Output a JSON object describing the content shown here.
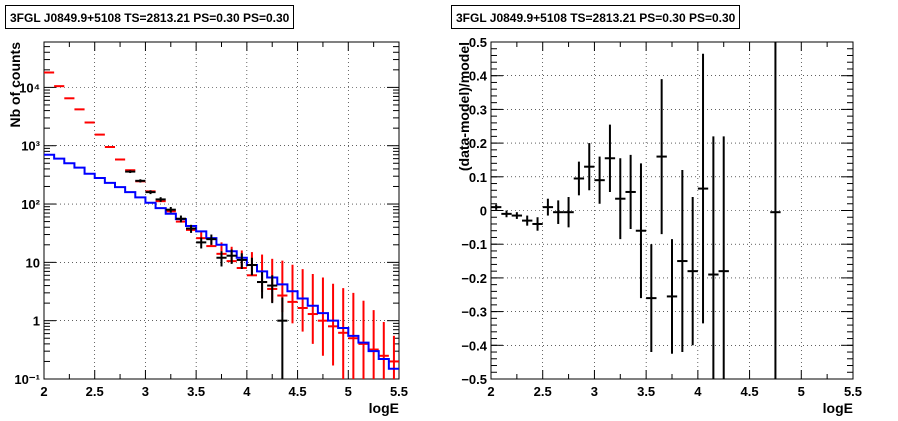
{
  "chart_data": [
    {
      "type": "line",
      "title": "3FGL J0849.9+5108 TS=2813.21 PS=0.30 PS=0.30",
      "xlabel": "logE",
      "ylabel": "Nb of counts",
      "xlim": [
        2,
        5.5
      ],
      "ylim": [
        0.1,
        60000
      ],
      "yscale": "log",
      "grid": true,
      "xticks": [
        2,
        2.5,
        3,
        3.5,
        4,
        4.5,
        5,
        5.5
      ],
      "xtick_labels": [
        "2",
        "2.5",
        "3",
        "3.5",
        "4",
        "4.5",
        "5",
        "5.5"
      ],
      "yticks": [
        0.1,
        1,
        10,
        100,
        1000,
        10000
      ],
      "ytick_labels": [
        "10⁻¹",
        "1",
        "10",
        "10²",
        "10³",
        "10⁴"
      ],
      "bin_width": 0.1,
      "series": [
        {
          "color": "#ff0000",
          "marker": "error-bar",
          "x": [
            2.05,
            2.15,
            2.25,
            2.35,
            2.45,
            2.55,
            2.65,
            2.75,
            2.85,
            2.95,
            3.05,
            3.15,
            3.25,
            3.35,
            3.45,
            3.55,
            3.65,
            3.75,
            3.85,
            3.95,
            4.05,
            4.15,
            4.25,
            4.35,
            4.45,
            4.55,
            4.65,
            4.75,
            4.85,
            4.95,
            5.05,
            5.15,
            5.25,
            5.35,
            5.45
          ],
          "y": [
            18000,
            10500,
            6500,
            4200,
            2500,
            1550,
            950,
            580,
            380,
            245,
            165,
            112,
            75,
            50,
            36,
            26,
            19,
            14,
            10.5,
            8,
            6,
            4.6,
            3.5,
            2.7,
            2.1,
            1.65,
            1.3,
            1.0,
            0.8,
            0.62,
            0.5,
            0.4,
            0.32,
            0.25,
            0.2
          ],
          "yerr_low": [
            0,
            0,
            0,
            0,
            0,
            0,
            0,
            0,
            0,
            0,
            0,
            0,
            0,
            0,
            0,
            0,
            0,
            0,
            0,
            0,
            0,
            1.5,
            1.4,
            1.3,
            1.2,
            1.0,
            0.9,
            0.75,
            0.63,
            0.52,
            0.44,
            0.37,
            0.3,
            0.24,
            0.195
          ],
          "yerr_high": [
            0,
            0,
            0,
            0,
            0,
            0,
            0,
            0,
            0,
            4,
            4,
            5,
            5,
            6,
            6,
            7,
            7,
            8,
            8,
            8,
            9,
            9,
            8,
            8,
            7,
            6,
            5,
            4.5,
            3.5,
            3,
            2.5,
            1.8,
            1.2,
            0.7,
            0.35
          ]
        },
        {
          "color": "#0000ff",
          "marker": "step",
          "x": [
            2.05,
            2.15,
            2.25,
            2.35,
            2.45,
            2.55,
            2.65,
            2.75,
            2.85,
            2.95,
            3.05,
            3.15,
            3.25,
            3.35,
            3.45,
            3.55,
            3.65,
            3.75,
            3.85,
            3.95,
            4.05,
            4.15,
            4.25,
            4.35,
            4.45,
            4.55,
            4.65,
            4.75,
            4.85,
            4.95,
            5.05,
            5.15,
            5.25,
            5.35,
            5.45
          ],
          "y": [
            700,
            600,
            500,
            420,
            330,
            280,
            230,
            195,
            160,
            130,
            105,
            85,
            68,
            55,
            42,
            34,
            26,
            20,
            15.5,
            12,
            9,
            7,
            5.5,
            4.2,
            3.2,
            2.4,
            1.8,
            1.35,
            1.0,
            0.75,
            0.55,
            0.42,
            0.3,
            0.22,
            0.15
          ]
        },
        {
          "color": "#000000",
          "marker": "error-bar",
          "x": [
            2.85,
            2.95,
            3.05,
            3.15,
            3.25,
            3.35,
            3.45,
            3.55,
            3.65,
            3.75,
            3.85,
            3.95,
            4.05,
            4.15,
            4.25,
            4.35
          ],
          "y": [
            360,
            250,
            160,
            120,
            80,
            56,
            38,
            22,
            25,
            12,
            13,
            11,
            9,
            4.6,
            4,
            1
          ],
          "yerr_low": [
            20,
            16,
            12,
            11,
            9,
            7.5,
            6,
            4.7,
            5,
            3.5,
            3.6,
            3.3,
            3,
            2.2,
            2,
            0.95
          ],
          "yerr_high": [
            20,
            16,
            12,
            11,
            9,
            7.5,
            6,
            4.7,
            5,
            3.5,
            3.6,
            3.3,
            3,
            2.2,
            2,
            1.5
          ]
        }
      ]
    },
    {
      "type": "scatter",
      "title": "3FGL J0849.9+5108 TS=2813.21 PS=0.30 PS=0.30",
      "xlabel": "logE",
      "ylabel": "(data-model)/model",
      "xlim": [
        2,
        5.5
      ],
      "ylim": [
        -0.5,
        0.5
      ],
      "grid": true,
      "xticks": [
        2,
        2.5,
        3,
        3.5,
        4,
        4.5,
        5,
        5.5
      ],
      "xtick_labels": [
        "2",
        "2.5",
        "3",
        "3.5",
        "4",
        "4.5",
        "5",
        "5.5"
      ],
      "yticks": [
        -0.5,
        -0.4,
        -0.3,
        -0.2,
        -0.1,
        0,
        0.1,
        0.2,
        0.3,
        0.4,
        0.5
      ],
      "ytick_labels": [
        "−0.5",
        "−0.4",
        "−0.3",
        "−0.2",
        "−0.1",
        "0",
        "0.1",
        "0.2",
        "0.3",
        "0.4",
        "0.5"
      ],
      "bin_width": 0.1,
      "series": [
        {
          "color": "#000000",
          "marker": "error-bar",
          "x": [
            2.05,
            2.15,
            2.25,
            2.35,
            2.45,
            2.55,
            2.65,
            2.75,
            2.85,
            2.95,
            3.05,
            3.15,
            3.25,
            3.35,
            3.45,
            3.55,
            3.65,
            3.75,
            3.85,
            3.95,
            4.05,
            4.15,
            4.25,
            4.75
          ],
          "y": [
            0.01,
            -0.01,
            -0.015,
            -0.03,
            -0.04,
            0.01,
            -0.005,
            -0.005,
            0.095,
            0.13,
            0.09,
            0.155,
            0.035,
            0.055,
            -0.06,
            -0.26,
            0.16,
            -0.255,
            -0.15,
            -0.18,
            0.065,
            -0.19,
            -0.18,
            -0.005
          ],
          "yerr": [
            0.008,
            0.01,
            0.01,
            0.015,
            0.02,
            0.025,
            0.035,
            0.045,
            0.05,
            0.07,
            0.07,
            0.1,
            0.12,
            0.11,
            0.2,
            0.16,
            0.23,
            0.17,
            0.27,
            0.22,
            0.4,
            0.41,
            0.4,
            0.9
          ]
        }
      ]
    }
  ]
}
